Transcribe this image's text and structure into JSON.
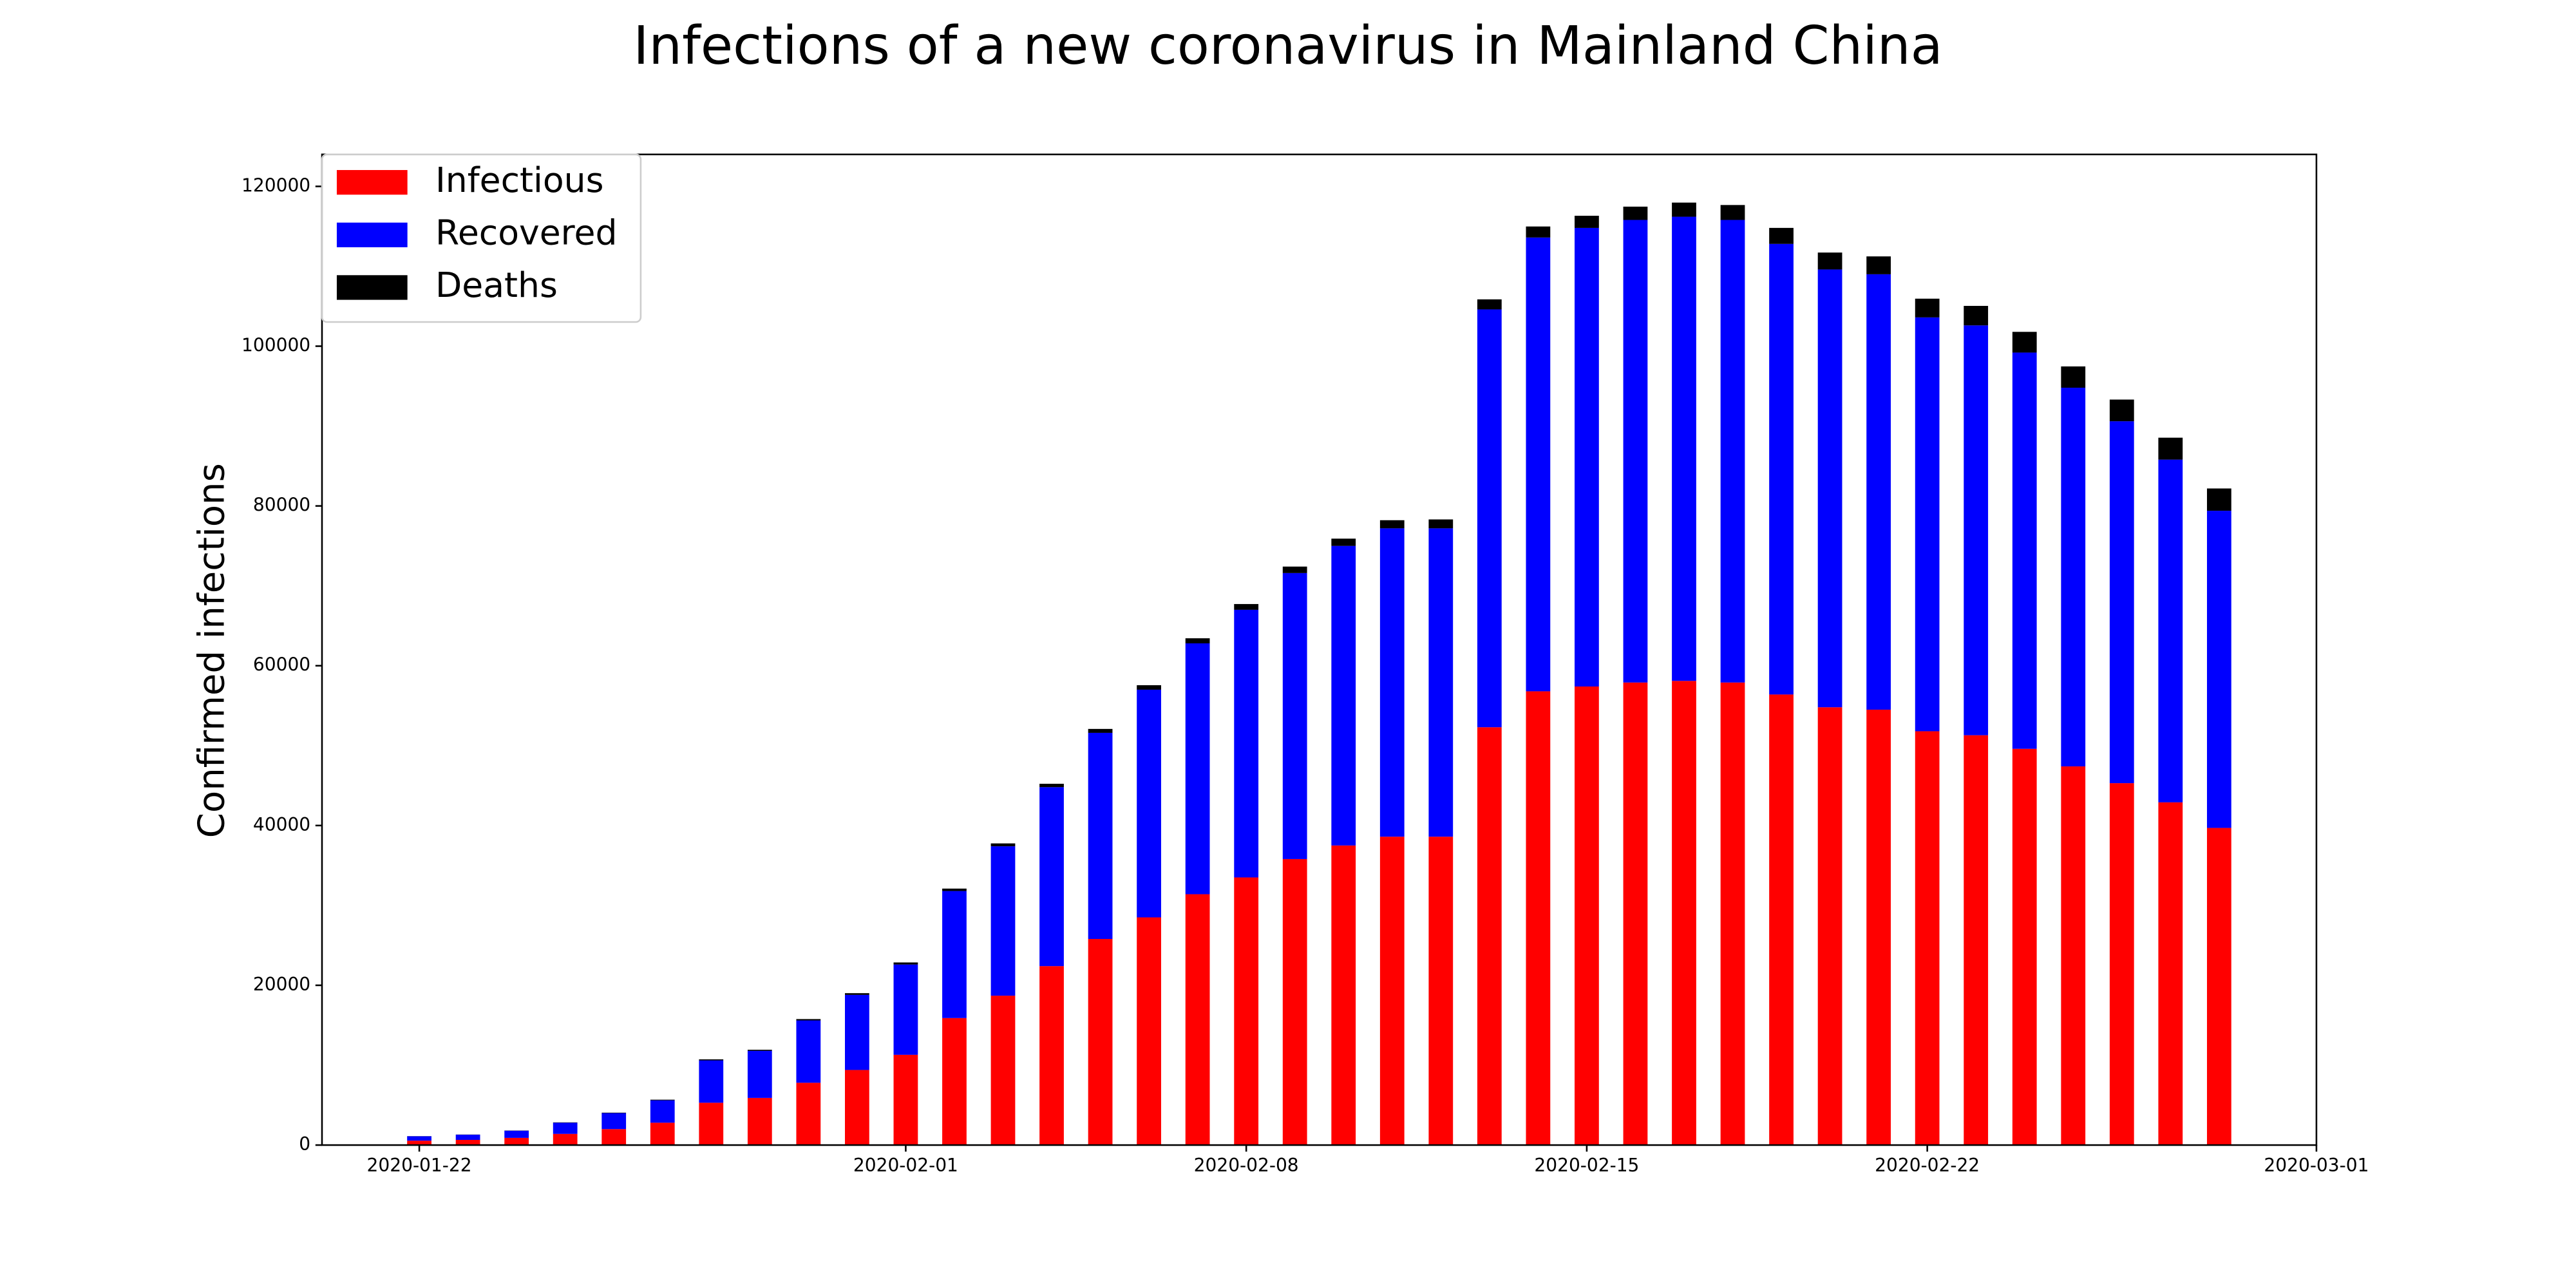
{
  "chart_data": {
    "type": "stacked_bar",
    "title": "Infections of a new coronavirus in Mainland China",
    "y_label": "Confirmed infections",
    "x": [
      "2020-01-22",
      "2020-01-23",
      "2020-01-24",
      "2020-01-25",
      "2020-01-26",
      "2020-01-27",
      "2020-01-28",
      "2020-01-29",
      "2020-01-30",
      "2020-01-31",
      "2020-02-01",
      "2020-02-02",
      "2020-02-03",
      "2020-02-04",
      "2020-02-05",
      "2020-02-06",
      "2020-02-07",
      "2020-02-08",
      "2020-02-09",
      "2020-02-10",
      "2020-02-11",
      "2020-02-12",
      "2020-02-13",
      "2020-02-14",
      "2020-02-15",
      "2020-02-16",
      "2020-02-17",
      "2020-02-18",
      "2020-02-19",
      "2020-02-20",
      "2020-02-21",
      "2020-02-22",
      "2020-02-23",
      "2020-02-24",
      "2020-02-25",
      "2020-02-26",
      "2020-02-27",
      "2020-02-28"
    ],
    "series": [
      {
        "name": "Infectious",
        "color": "#ff0000",
        "values": [
          550,
          650,
          900,
          1400,
          2000,
          2800,
          5300,
          5900,
          7800,
          9400,
          11300,
          15900,
          18700,
          22400,
          25800,
          28500,
          31400,
          33500,
          35800,
          37500,
          38600,
          38600,
          52300,
          56800,
          57400,
          57900,
          58100,
          57900,
          56400,
          54800,
          54500,
          51800,
          51300,
          49600,
          47400,
          45300,
          42900,
          39700
        ]
      },
      {
        "name": "Recovered",
        "color": "#0000ff",
        "values": [
          550,
          650,
          900,
          1400,
          2000,
          2800,
          5300,
          5900,
          7800,
          9400,
          11300,
          15900,
          18700,
          22400,
          25800,
          28500,
          31400,
          33500,
          35800,
          37500,
          38600,
          38600,
          52300,
          56800,
          57400,
          57900,
          58100,
          57900,
          56400,
          54800,
          54500,
          51800,
          51300,
          49600,
          47400,
          45300,
          42900,
          39700
        ]
      },
      {
        "name": "Deaths",
        "color": "#000000",
        "values": [
          17,
          18,
          26,
          42,
          56,
          82,
          131,
          133,
          171,
          213,
          259,
          304,
          361,
          425,
          490,
          562,
          636,
          722,
          811,
          908,
          1016,
          1113,
          1259,
          1380,
          1523,
          1665,
          1770,
          1868,
          2004,
          2118,
          2236,
          2345,
          2442,
          2592,
          2663,
          2715,
          2744,
          2788
        ]
      }
    ],
    "xlim": [
      "2020-01-20",
      "2020-03-01"
    ],
    "xticks": [
      "2020-01-22",
      "2020-02-01",
      "2020-02-08",
      "2020-02-15",
      "2020-02-22",
      "2020-03-01"
    ],
    "ylim": [
      0,
      124000
    ],
    "yticks": [
      0,
      20000,
      40000,
      60000,
      80000,
      100000,
      120000
    ],
    "legend": "upper left"
  }
}
